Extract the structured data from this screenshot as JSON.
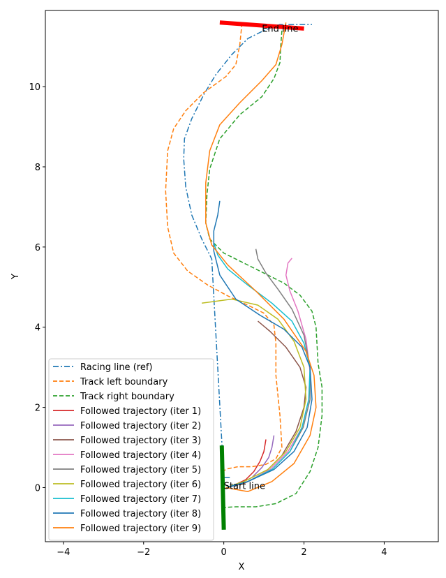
{
  "chart_data": {
    "type": "line",
    "title": "",
    "xlabel": "X",
    "ylabel": "Y",
    "xlim": [
      -4.45,
      5.35
    ],
    "ylim": [
      -1.35,
      11.9
    ],
    "xticks": [
      -4,
      -2,
      0,
      2,
      4
    ],
    "yticks": [
      0,
      2,
      4,
      6,
      8,
      10
    ],
    "grid": false,
    "legend_position": "lower-left",
    "series": [
      {
        "name": "Racing line (ref)",
        "color": "#1f77b4",
        "style": "dashdot",
        "width": 1.5,
        "x": [
          0.15,
          0.1,
          0.0,
          -0.3,
          -0.55,
          -0.8,
          -0.95,
          -1.0,
          -0.98,
          -0.8,
          -0.5,
          -0.2,
          0.2,
          0.6,
          1.0,
          1.4,
          1.75,
          2.0,
          2.15,
          2.2
        ],
        "y": [
          0.25,
          0.25,
          0.25,
          5.7,
          6.2,
          6.8,
          7.5,
          8.2,
          8.7,
          9.2,
          9.8,
          10.3,
          10.8,
          11.2,
          11.4,
          11.55,
          11.55,
          11.55,
          11.55,
          11.55
        ]
      },
      {
        "name": "Track left boundary",
        "color": "#ff7f0e",
        "style": "dashed",
        "width": 1.5,
        "x": [
          -0.05,
          0.1,
          0.35,
          0.7,
          1.05,
          1.3,
          1.45,
          1.4,
          1.3,
          1.3,
          1.25,
          1.0,
          0.6,
          0.1,
          -0.4,
          -0.9,
          -1.25,
          -1.4,
          -1.45,
          -1.4,
          -1.25,
          -0.95,
          -0.5,
          0.05,
          0.3,
          0.4,
          0.45
        ],
        "y": [
          0.4,
          0.47,
          0.52,
          0.52,
          0.58,
          0.72,
          1.0,
          1.8,
          2.8,
          3.6,
          4.05,
          4.35,
          4.55,
          4.78,
          5.05,
          5.4,
          5.85,
          6.5,
          7.4,
          8.4,
          8.95,
          9.4,
          9.85,
          10.25,
          10.55,
          11.05,
          11.55
        ]
      },
      {
        "name": "Track right boundary",
        "color": "#2ca02c",
        "style": "dashed",
        "width": 1.5,
        "x": [
          -0.05,
          0.3,
          0.8,
          1.3,
          1.8,
          2.15,
          2.35,
          2.45,
          2.45,
          2.35,
          2.3,
          2.2,
          1.9,
          1.5,
          0.8,
          0.0,
          -0.35,
          -0.45,
          -0.42,
          -0.35,
          -0.1,
          0.4,
          0.95,
          1.25,
          1.4,
          1.42,
          1.45
        ],
        "y": [
          -0.5,
          -0.48,
          -0.48,
          -0.4,
          -0.15,
          0.4,
          1.0,
          1.8,
          2.5,
          3.1,
          4.0,
          4.4,
          4.8,
          5.1,
          5.45,
          5.85,
          6.2,
          6.6,
          7.3,
          7.95,
          8.7,
          9.3,
          9.75,
          10.2,
          10.6,
          11.0,
          11.4
        ]
      },
      {
        "name": "Followed trajectory (iter 1)",
        "color": "#d62728",
        "style": "solid",
        "width": 1.5,
        "x": [
          0.1,
          0.3,
          0.55,
          0.75,
          0.9,
          1.0,
          1.05
        ],
        "y": [
          0.0,
          0.08,
          0.2,
          0.4,
          0.65,
          0.9,
          1.2
        ]
      },
      {
        "name": "Followed trajectory (iter 2)",
        "color": "#9467bd",
        "style": "solid",
        "width": 1.5,
        "x": [
          0.1,
          0.4,
          0.7,
          0.95,
          1.12,
          1.2,
          1.25
        ],
        "y": [
          0.0,
          0.1,
          0.25,
          0.5,
          0.75,
          1.0,
          1.3
        ]
      },
      {
        "name": "Followed trajectory (iter 3)",
        "color": "#8c564b",
        "style": "solid",
        "width": 1.5,
        "x": [
          0.05,
          0.5,
          1.0,
          1.45,
          1.8,
          2.0,
          2.05,
          1.9,
          1.55,
          1.15,
          0.85
        ],
        "y": [
          0.0,
          0.1,
          0.35,
          0.8,
          1.4,
          2.0,
          2.5,
          3.0,
          3.5,
          3.9,
          4.15
        ]
      },
      {
        "name": "Followed trajectory (iter 4)",
        "color": "#e377c2",
        "style": "solid",
        "width": 1.5,
        "x": [
          0.1,
          0.6,
          1.15,
          1.6,
          1.95,
          2.12,
          2.15,
          2.05,
          1.85,
          1.65,
          1.55,
          1.6,
          1.7
        ],
        "y": [
          0.0,
          0.15,
          0.45,
          0.9,
          1.5,
          2.2,
          2.9,
          3.7,
          4.4,
          4.9,
          5.3,
          5.6,
          5.72
        ]
      },
      {
        "name": "Followed trajectory (iter 5)",
        "color": "#7f7f7f",
        "style": "solid",
        "width": 1.5,
        "x": [
          0.1,
          0.6,
          1.2,
          1.65,
          1.98,
          2.15,
          2.15,
          2.0,
          1.7,
          1.35,
          1.05,
          0.85,
          0.8
        ],
        "y": [
          0.0,
          0.15,
          0.45,
          0.9,
          1.5,
          2.2,
          3.0,
          3.8,
          4.45,
          4.95,
          5.35,
          5.7,
          5.95
        ]
      },
      {
        "name": "Followed trajectory (iter 6)",
        "color": "#bcbd22",
        "style": "solid",
        "width": 1.5,
        "x": [
          0.05,
          0.5,
          1.1,
          1.55,
          1.9,
          2.05,
          2.0,
          1.75,
          1.35,
          0.85,
          0.2,
          -0.55
        ],
        "y": [
          0.0,
          0.15,
          0.45,
          0.9,
          1.5,
          2.2,
          3.0,
          3.65,
          4.2,
          4.55,
          4.7,
          4.6
        ]
      },
      {
        "name": "Followed trajectory (iter 7)",
        "color": "#17becf",
        "style": "solid",
        "width": 1.5,
        "x": [
          0.05,
          0.6,
          1.2,
          1.65,
          1.95,
          2.12,
          2.15,
          2.0,
          1.7,
          1.2,
          0.6,
          0.1,
          -0.15,
          -0.25
        ],
        "y": [
          0.0,
          0.15,
          0.45,
          0.9,
          1.5,
          2.2,
          3.0,
          3.6,
          4.15,
          4.6,
          5.05,
          5.45,
          5.8,
          6.1
        ]
      },
      {
        "name": "Followed trajectory (iter 8)",
        "color": "#1f77b4",
        "style": "solid",
        "width": 1.5,
        "x": [
          0.05,
          0.6,
          1.25,
          1.75,
          2.08,
          2.2,
          2.15,
          1.95,
          1.5,
          0.9,
          0.3,
          -0.1,
          -0.25,
          -0.25,
          -0.15,
          -0.1
        ],
        "y": [
          0.0,
          0.15,
          0.45,
          0.9,
          1.5,
          2.2,
          3.0,
          3.5,
          3.95,
          4.3,
          4.7,
          5.3,
          5.9,
          6.4,
          6.8,
          7.15
        ]
      },
      {
        "name": "Followed trajectory (iter 9)",
        "color": "#ff7f0e",
        "style": "solid",
        "width": 1.5,
        "x": [
          0.05,
          0.6,
          1.2,
          1.75,
          2.15,
          2.3,
          2.25,
          2.05,
          1.5,
          0.8,
          0.1,
          -0.3,
          -0.45,
          -0.45,
          -0.35,
          -0.1,
          0.4,
          0.95,
          1.3,
          1.45,
          1.55
        ],
        "y": [
          0.0,
          -0.1,
          0.15,
          0.6,
          1.3,
          2.0,
          2.8,
          3.4,
          4.2,
          4.9,
          5.55,
          6.05,
          6.6,
          7.6,
          8.4,
          9.05,
          9.6,
          10.15,
          10.55,
          11.05,
          11.6
        ]
      }
    ],
    "annotations": [
      {
        "text": "Start line",
        "x": 0.0,
        "y": 0.0
      },
      {
        "text": "End line",
        "x": 0.95,
        "y": 11.4
      }
    ],
    "start_line": {
      "color": "#008000",
      "x": [
        -0.05,
        0.0
      ],
      "y": [
        1.05,
        -1.05
      ]
    },
    "end_line": {
      "color": "#ff0000",
      "x": [
        -0.1,
        2.0
      ],
      "y": [
        11.6,
        11.45
      ]
    }
  }
}
